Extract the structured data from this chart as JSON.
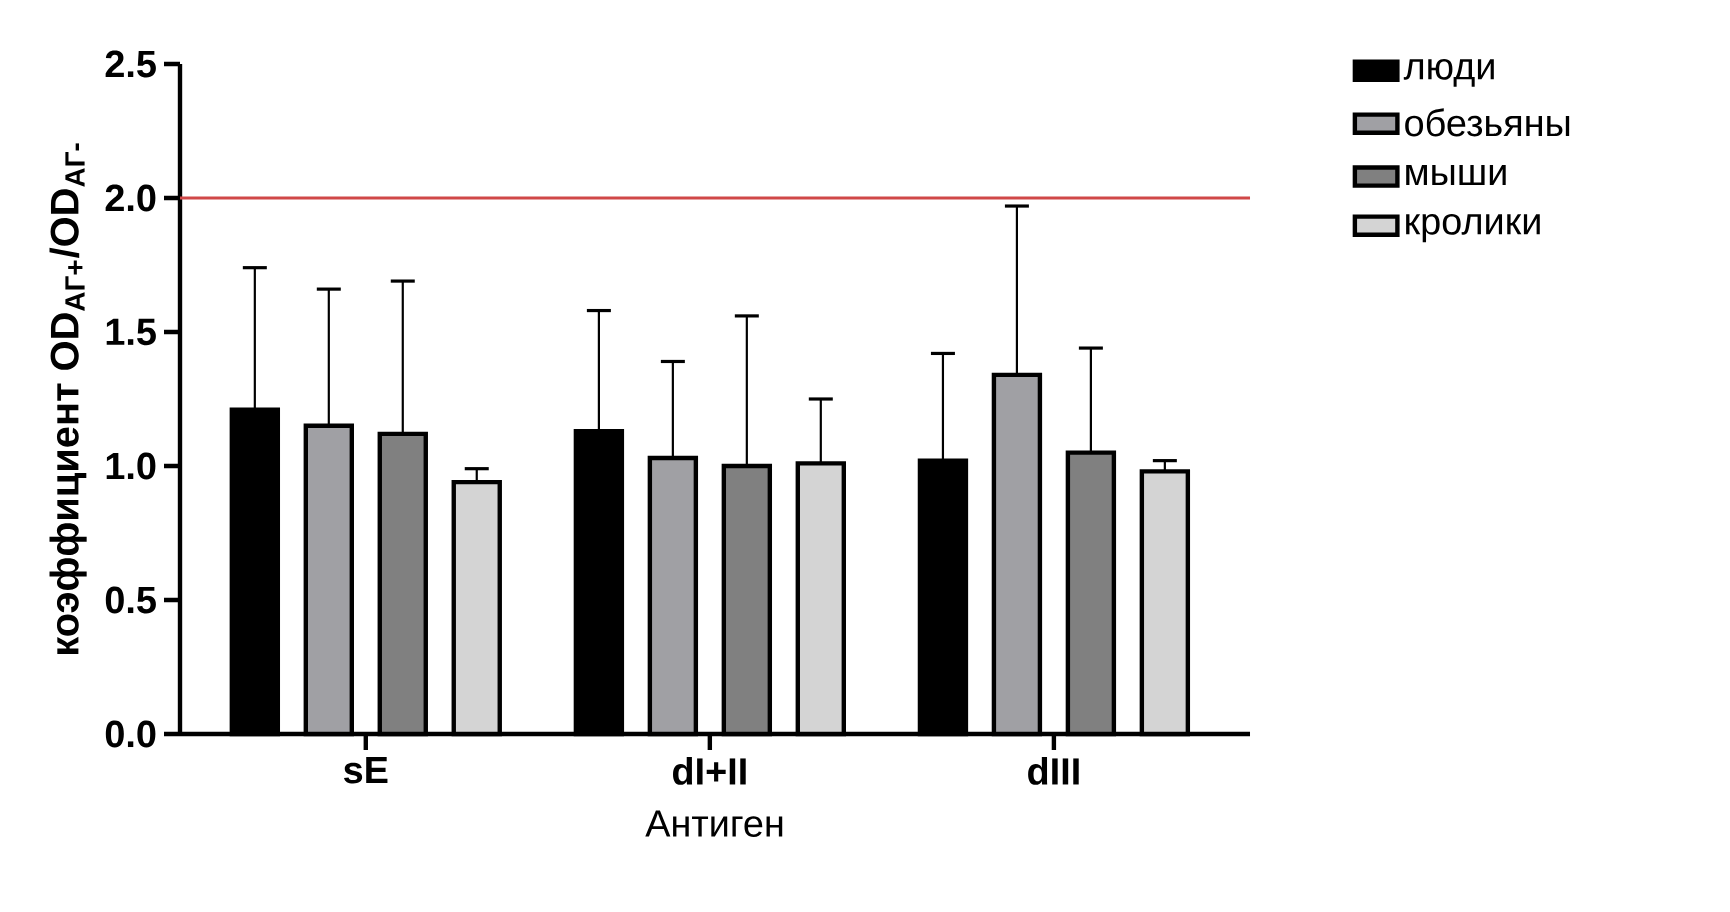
{
  "chart_data": {
    "type": "bar",
    "xlabel": "Антиген",
    "ylabel": "коэффициент OD$_{АГ+}$/OD$_{АГ-}$",
    "categories": [
      "sE",
      "dI+II",
      "dIII"
    ],
    "series": [
      {
        "name": "люди",
        "color": "#000000",
        "values": [
          1.21,
          1.13,
          1.02
        ],
        "errors": [
          [
            1.21,
            1.74
          ],
          [
            1.13,
            1.58
          ],
          [
            1.02,
            1.42
          ]
        ]
      },
      {
        "name": "обезьяны",
        "color": "#a0a0a4",
        "values": [
          1.15,
          1.03,
          1.34
        ],
        "errors": [
          [
            1.15,
            1.66
          ],
          [
            1.03,
            1.39
          ],
          [
            1.34,
            1.97
          ]
        ]
      },
      {
        "name": "мыши",
        "color": "#808080",
        "values": [
          1.12,
          1.0,
          1.05
        ],
        "errors": [
          [
            1.12,
            1.69
          ],
          [
            1.0,
            1.56
          ],
          [
            1.05,
            1.44
          ]
        ]
      },
      {
        "name": "кролики",
        "color": "#d4d4d4",
        "values": [
          0.94,
          1.01,
          0.98
        ],
        "errors": [
          [
            0.94,
            0.99
          ],
          [
            1.01,
            1.25
          ],
          [
            0.98,
            1.02
          ]
        ]
      }
    ],
    "ylim": [
      0,
      2.5
    ],
    "yticks": [
      {
        "value": 0,
        "label": "0.0"
      },
      {
        "value": 0.5,
        "label": "0.5"
      },
      {
        "value": 1,
        "label": "1.0"
      },
      {
        "value": 1.5,
        "label": "1.5"
      },
      {
        "value": 2,
        "label": "2.0"
      },
      {
        "value": 2.5,
        "label": "2.5"
      }
    ],
    "ref_lines": [
      {
        "axis": "y",
        "value": 2,
        "color": "#d04848"
      }
    ],
    "grid": false,
    "legend": "right"
  }
}
